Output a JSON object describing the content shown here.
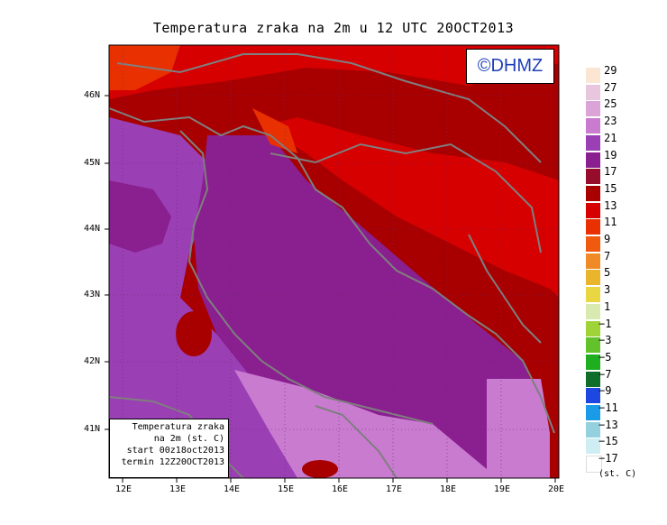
{
  "title": "Temperatura zraka na 2m u 12 UTC 20OCT2013",
  "logo_text": "©DHMZ",
  "info_box": {
    "line1": "Temperatura zraka",
    "line2": "na 2m (st. C)",
    "line3": "start 00z18oct2013",
    "line4": "termin 12Z20OCT2013"
  },
  "axes": {
    "lon_labels": [
      "12E",
      "13E",
      "14E",
      "15E",
      "16E",
      "17E",
      "18E",
      "19E",
      "20E"
    ],
    "lat_labels": [
      "46N",
      "45N",
      "44N",
      "43N",
      "42N",
      "41N"
    ]
  },
  "colorbar": {
    "unit": "(st. C)",
    "labels": [
      "29",
      "27",
      "25",
      "23",
      "21",
      "19",
      "17",
      "15",
      "13",
      "11",
      "9",
      "7",
      "5",
      "3",
      "1",
      "−1",
      "−3",
      "−5",
      "−7",
      "−9",
      "−11",
      "−13",
      "−15",
      "−17"
    ],
    "colors": [
      "#fbe6d3",
      "#e8c7de",
      "#dca3d8",
      "#c97bd0",
      "#9b3fb5",
      "#8a1f8f",
      "#960d2b",
      "#a80000",
      "#d60000",
      "#e93000",
      "#f05a0f",
      "#ef8a26",
      "#e9b52d",
      "#e8d742",
      "#d8eab0",
      "#9fd337",
      "#63c12c",
      "#1fae1f",
      "#0f6e2a",
      "#1e46e0",
      "#1a9be8",
      "#95d0df",
      "#cfeef4",
      "#ffffff"
    ]
  },
  "colors": {
    "sea": "#8a1f8f",
    "sea_light": "#9b3fb5",
    "coast_land": "#a80000",
    "land_high": "#d60000",
    "land_peak": "#e93000",
    "border_line": "#7f7f7f"
  }
}
